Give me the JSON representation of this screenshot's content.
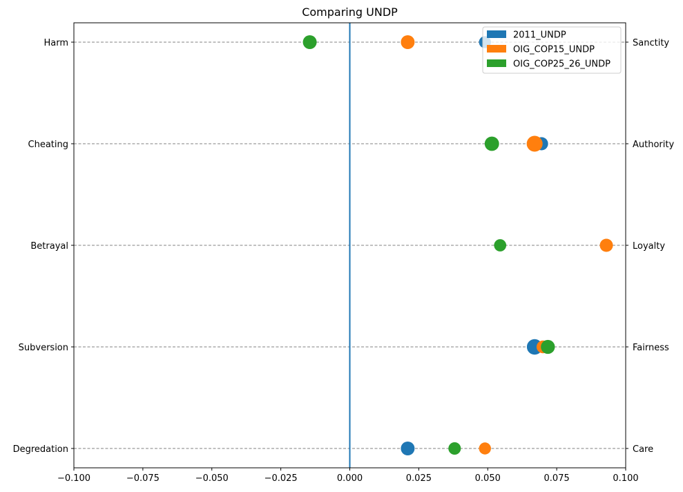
{
  "chart_data": {
    "type": "scatter",
    "title": "Comparing UNDP",
    "xlabel": "",
    "ylabel": "",
    "xlim": [
      -0.1,
      0.1
    ],
    "xticks": [
      -0.1,
      -0.075,
      -0.05,
      -0.025,
      0.0,
      0.025,
      0.05,
      0.075,
      0.1
    ],
    "xtick_labels": [
      "−0.100",
      "−0.075",
      "−0.050",
      "−0.025",
      "0.000",
      "0.025",
      "0.050",
      "0.075",
      "0.100"
    ],
    "left_categories": [
      "Harm",
      "Cheating",
      "Betrayal",
      "Subversion",
      "Degredation"
    ],
    "right_categories": [
      "Sanctity",
      "Authority",
      "Loyalty",
      "Fairness",
      "Care"
    ],
    "reference_line_x": 0.0,
    "grid": "horizontal dashed lines at each category",
    "legend_position": "top-right",
    "series": [
      {
        "name": "2011_UNDP",
        "color": "#1f77b4",
        "points": [
          {
            "category": "Harm",
            "x": 0.049,
            "size": 250
          },
          {
            "category": "Cheating",
            "x": 0.0695,
            "size": 300
          },
          {
            "category": "Betrayal",
            "x": 0.093,
            "size": 250
          },
          {
            "category": "Subversion",
            "x": 0.067,
            "size": 420
          },
          {
            "category": "Degredation",
            "x": 0.021,
            "size": 330
          }
        ]
      },
      {
        "name": "OIG_COP15_UNDP",
        "color": "#ff7f0e",
        "points": [
          {
            "category": "Harm",
            "x": 0.021,
            "size": 330
          },
          {
            "category": "Cheating",
            "x": 0.067,
            "size": 440
          },
          {
            "category": "Betrayal",
            "x": 0.093,
            "size": 300
          },
          {
            "category": "Subversion",
            "x": 0.07,
            "size": 280
          },
          {
            "category": "Degredation",
            "x": 0.049,
            "size": 250
          }
        ]
      },
      {
        "name": "OIG_COP25_26_UNDP",
        "color": "#2ca02c",
        "points": [
          {
            "category": "Harm",
            "x": -0.0145,
            "size": 330
          },
          {
            "category": "Cheating",
            "x": 0.0515,
            "size": 360
          },
          {
            "category": "Betrayal",
            "x": 0.0545,
            "size": 260
          },
          {
            "category": "Subversion",
            "x": 0.0718,
            "size": 340
          },
          {
            "category": "Degredation",
            "x": 0.038,
            "size": 270
          }
        ]
      }
    ]
  }
}
